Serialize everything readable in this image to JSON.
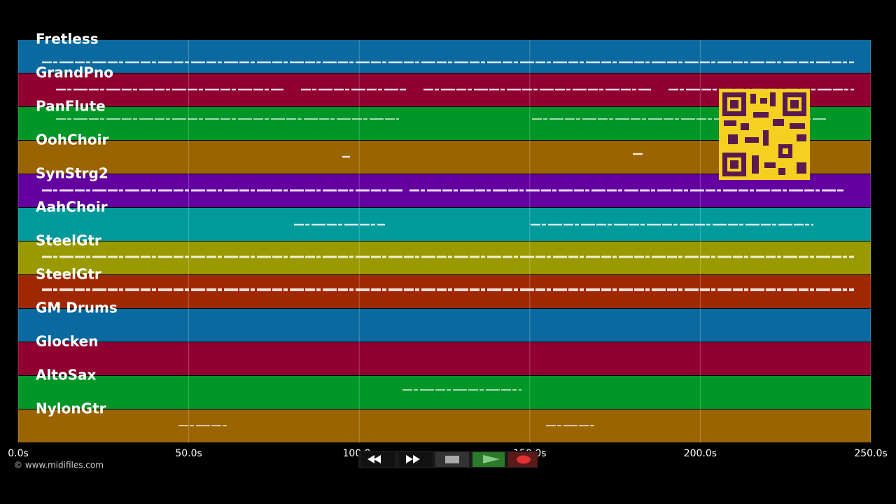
{
  "tracks": [
    {
      "name": "Fretless",
      "color": "#0a6aa0"
    },
    {
      "name": "GrandPno",
      "color": "#900030"
    },
    {
      "name": "PanFlute",
      "color": "#009628"
    },
    {
      "name": "OohChoir",
      "color": "#9a6400"
    },
    {
      "name": "SynStrg2",
      "color": "#6400a0"
    },
    {
      "name": "AahChoir",
      "color": "#009a9a"
    },
    {
      "name": "SteelGtr",
      "color": "#9a9a00"
    },
    {
      "name": "SteelGtr",
      "color": "#a02800"
    },
    {
      "name": "GM Drums",
      "color": "#0a6aa0"
    },
    {
      "name": "Glocken",
      "color": "#900030"
    },
    {
      "name": "AltoSax",
      "color": "#009628"
    },
    {
      "name": "NylonGtr",
      "color": "#9a6400"
    }
  ],
  "time_axis": {
    "range": [
      0,
      250
    ],
    "ticks": [
      {
        "value": 0,
        "label": "0.0s"
      },
      {
        "value": 50,
        "label": "50.0s"
      },
      {
        "value": 100,
        "label": "100.0s"
      },
      {
        "value": 150,
        "label": "150.0s"
      },
      {
        "value": 200,
        "label": "200.0s"
      },
      {
        "value": 250,
        "label": "250.0s"
      }
    ]
  },
  "copyright": "© www.midifiles.com"
}
